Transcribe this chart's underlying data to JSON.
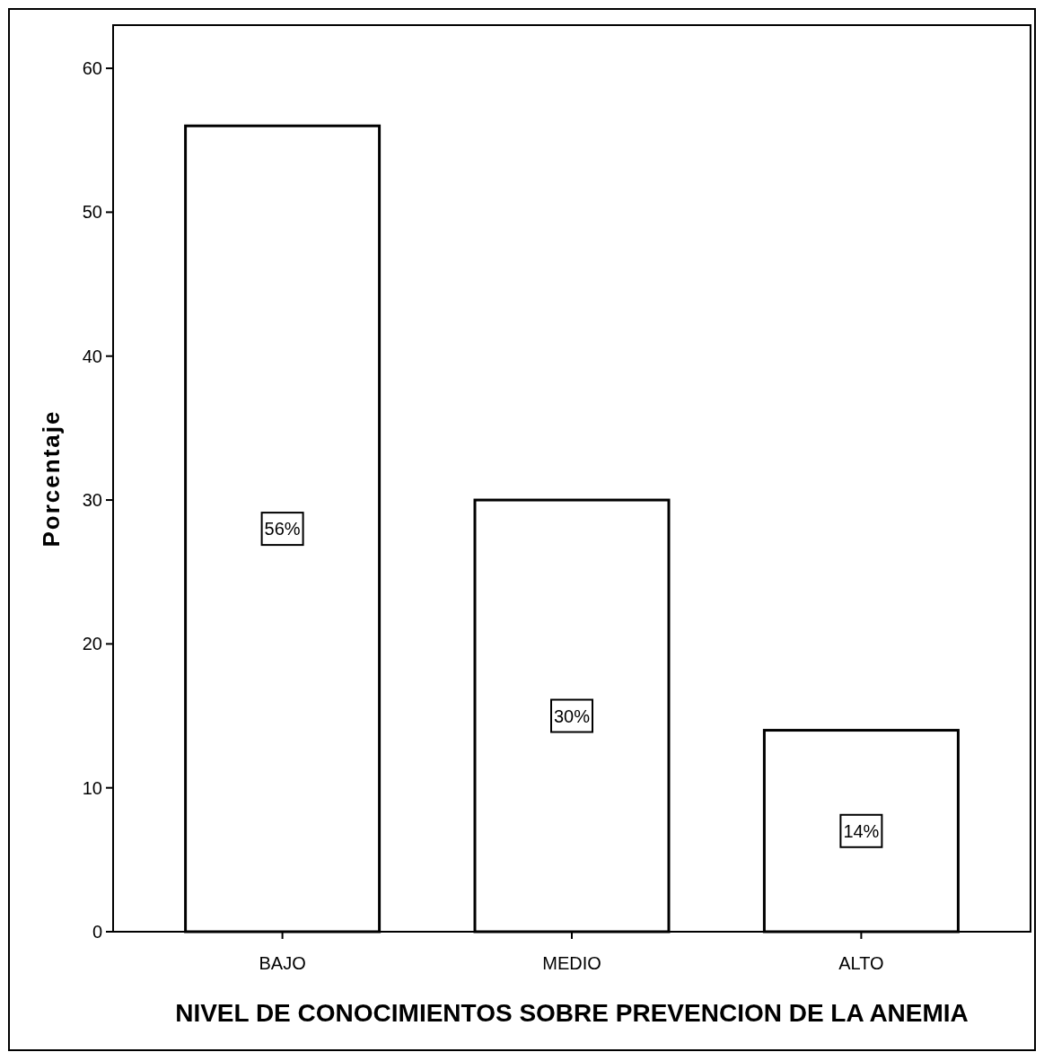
{
  "chart_data": {
    "type": "bar",
    "xlabel": "NIVEL DE CONOCIMIENTOS SOBRE PREVENCION DE LA ANEMIA",
    "ylabel": "Porcentaje",
    "categories": [
      "BAJO",
      "MEDIO",
      "ALTO"
    ],
    "values": [
      56,
      30,
      14
    ],
    "value_labels": [
      "56%",
      "30%",
      "14%"
    ],
    "color": "#ffffff",
    "ylim": [
      0,
      63
    ],
    "yticks": [
      0,
      10,
      20,
      30,
      40,
      50,
      60
    ],
    "grid": false
  }
}
